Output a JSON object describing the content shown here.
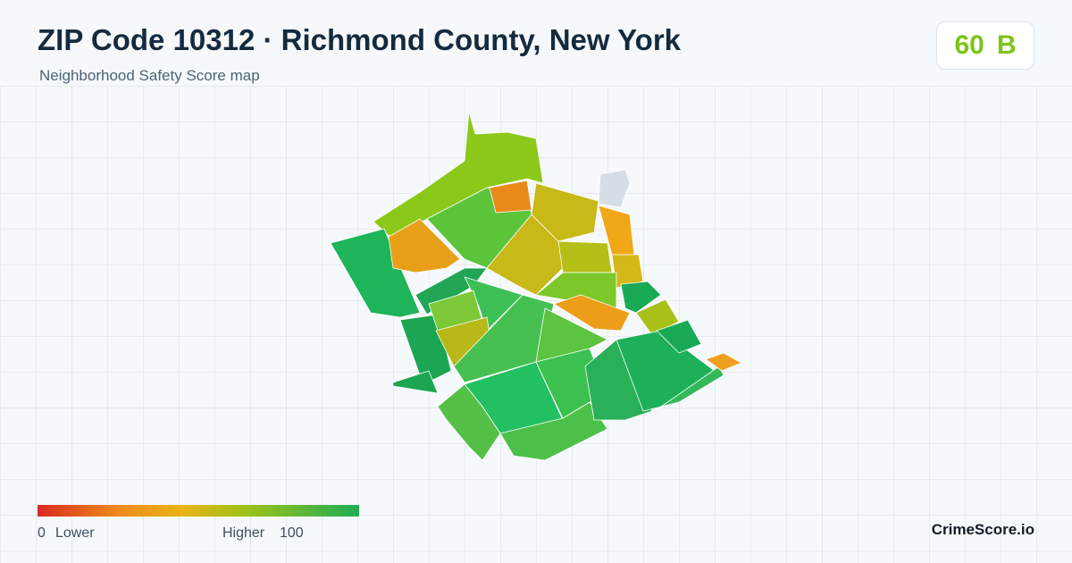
{
  "header": {
    "title": "ZIP Code 10312 · Richmond County, New York",
    "subtitle": "Neighborhood Safety Score map",
    "score": "60",
    "grade": "B"
  },
  "legend": {
    "min": "0",
    "min_label": "Lower",
    "max_label": "Higher",
    "max": "100"
  },
  "brand": "CrimeScore.io"
}
